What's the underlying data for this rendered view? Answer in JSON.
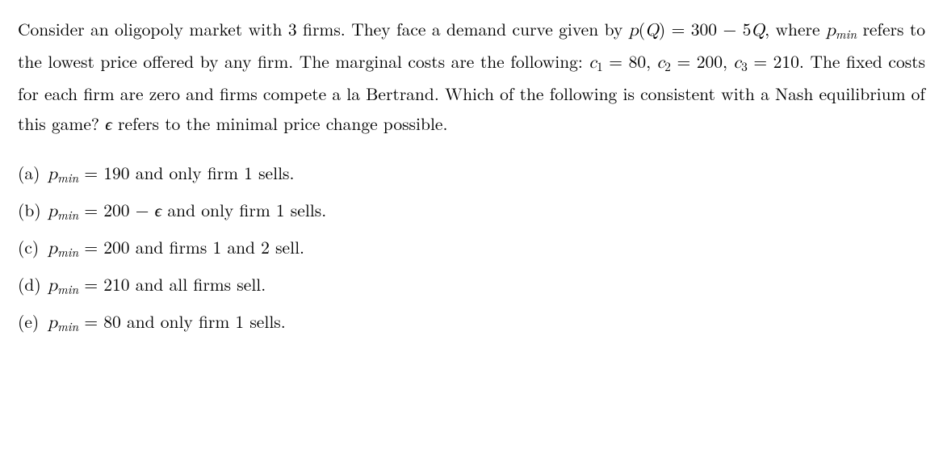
{
  "question": {
    "part1": "Consider an oligopoly market with 3 firms. They face a demand curve given by ",
    "pQ": "p",
    "Qparen_open": "(",
    "Qvar": "Q",
    "Qparen_close": ") =",
    "eqline": "300 − 5",
    "Qvar2": "Q",
    "part2": ", where ",
    "pmin": "p",
    "pmin_sub": "min",
    "part3": " refers to the lowest price offered by any firm. The marginal costs are the following: ",
    "c1": "c",
    "c1sub": "1",
    "eq1": " = 80, ",
    "c2": "c",
    "c2sub": "2",
    "eq2": " = 200, ",
    "c3": "c",
    "c3sub": "3",
    "eq3": " = 210. The fixed costs for each firm are zero and firms compete a la Bertrand. Which of the following is consistent with a Nash equilibrium of this game? ",
    "eps": "ϵ",
    "part4": " refers to the minimal price change possible."
  },
  "options": {
    "a": {
      "label": "(a)",
      "p": "p",
      "sub": "min",
      "rest": " = 190 and only firm 1 sells."
    },
    "b": {
      "label": "(b)",
      "p": "p",
      "sub": "min",
      "mid": " = 200 − ",
      "eps": "ϵ",
      "rest": " and only firm 1 sells."
    },
    "c": {
      "label": "(c)",
      "p": "p",
      "sub": "min",
      "rest": " = 200 and firms 1 and 2 sell."
    },
    "d": {
      "label": "(d)",
      "p": "p",
      "sub": "min",
      "rest": " = 210 and all firms sell."
    },
    "e": {
      "label": "(e)",
      "p": "p",
      "sub": "min",
      "rest": " = 80 and only firm 1 sells."
    }
  }
}
